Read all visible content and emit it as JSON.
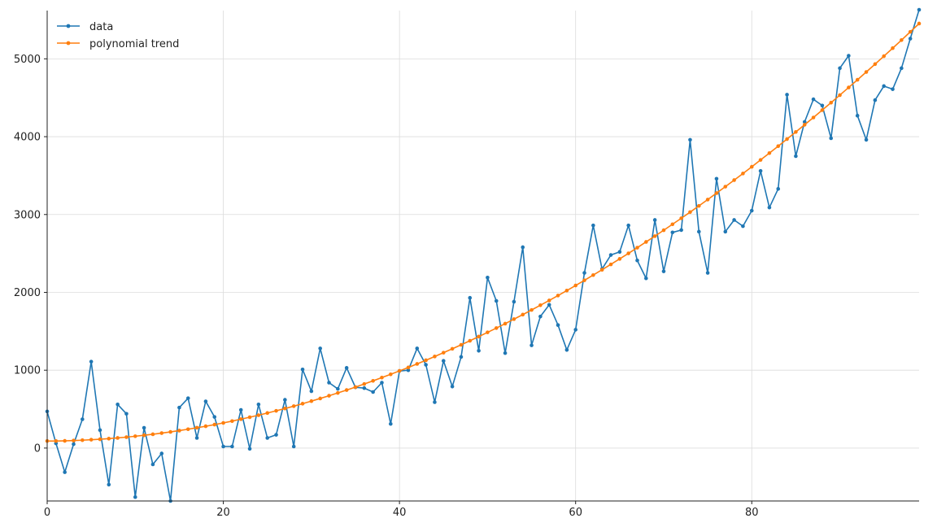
{
  "chart_data": {
    "type": "line",
    "title": "",
    "xlabel": "",
    "ylabel": "",
    "xlim": [
      0,
      99
    ],
    "ylim": [
      -680,
      5620
    ],
    "xticks": [
      0,
      20,
      40,
      60,
      80
    ],
    "yticks": [
      0,
      1000,
      2000,
      3000,
      4000,
      5000
    ],
    "grid": true,
    "legend": "top-left",
    "x": [
      0,
      1,
      2,
      3,
      4,
      5,
      6,
      7,
      8,
      9,
      10,
      11,
      12,
      13,
      14,
      15,
      16,
      17,
      18,
      19,
      20,
      21,
      22,
      23,
      24,
      25,
      26,
      27,
      28,
      29,
      30,
      31,
      32,
      33,
      34,
      35,
      36,
      37,
      38,
      39,
      40,
      41,
      42,
      43,
      44,
      45,
      46,
      47,
      48,
      49,
      50,
      51,
      52,
      53,
      54,
      55,
      56,
      57,
      58,
      59,
      60,
      61,
      62,
      63,
      64,
      65,
      66,
      67,
      68,
      69,
      70,
      71,
      72,
      73,
      74,
      75,
      76,
      77,
      78,
      79,
      80,
      81,
      82,
      83,
      84,
      85,
      86,
      87,
      88,
      89,
      90,
      91,
      92,
      93,
      94,
      95,
      96,
      97,
      98,
      99
    ],
    "series": [
      {
        "name": "data",
        "color": "#1f77b4",
        "values": [
          470,
          60,
          -310,
          50,
          370,
          1110,
          230,
          -470,
          560,
          440,
          -630,
          260,
          -210,
          -70,
          -680,
          520,
          640,
          130,
          600,
          400,
          20,
          20,
          490,
          -10,
          560,
          130,
          170,
          620,
          20,
          1010,
          730,
          1280,
          840,
          760,
          1030,
          780,
          770,
          720,
          840,
          310,
          990,
          1000,
          1280,
          1070,
          590,
          1120,
          790,
          1170,
          1930,
          1250,
          2190,
          1890,
          1220,
          1880,
          2580,
          1320,
          1690,
          1840,
          1580,
          1260,
          1520,
          2250,
          2860,
          2300,
          2480,
          2520,
          2860,
          2410,
          2180,
          2930,
          2270,
          2770,
          2800,
          3960,
          2780,
          2250,
          3460,
          2780,
          2930,
          2850,
          3050,
          3560,
          3090,
          3330,
          4540,
          3750,
          4190,
          4480,
          4400,
          3980,
          4880,
          5040,
          4270,
          3960,
          4470,
          4650,
          4610,
          4880,
          5260,
          5630
        ]
      },
      {
        "name": "polynomial trend",
        "color": "#ff7f0e",
        "values": [
          90,
          90,
          92,
          96,
          101,
          107,
          113,
          121,
          130,
          140,
          152,
          164,
          177,
          192,
          207,
          224,
          242,
          261,
          280,
          301,
          323,
          346,
          371,
          396,
          422,
          450,
          478,
          508,
          538,
          570,
          603,
          637,
          672,
          708,
          745,
          783,
          823,
          863,
          905,
          947,
          991,
          1035,
          1081,
          1128,
          1176,
          1225,
          1275,
          1326,
          1378,
          1432,
          1486,
          1541,
          1598,
          1656,
          1714,
          1774,
          1835,
          1896,
          1959,
          2023,
          2088,
          2155,
          2222,
          2290,
          2359,
          2430,
          2501,
          2574,
          2648,
          2722,
          2798,
          2875,
          2952,
          3031,
          3111,
          3192,
          3275,
          3358,
          3442,
          3527,
          3613,
          3701,
          3789,
          3878,
          3969,
          4060,
          4153,
          4246,
          4341,
          4437,
          4534,
          4632,
          4731,
          4831,
          4932,
          5034,
          5137,
          5241,
          5347,
          5453
        ]
      }
    ]
  }
}
